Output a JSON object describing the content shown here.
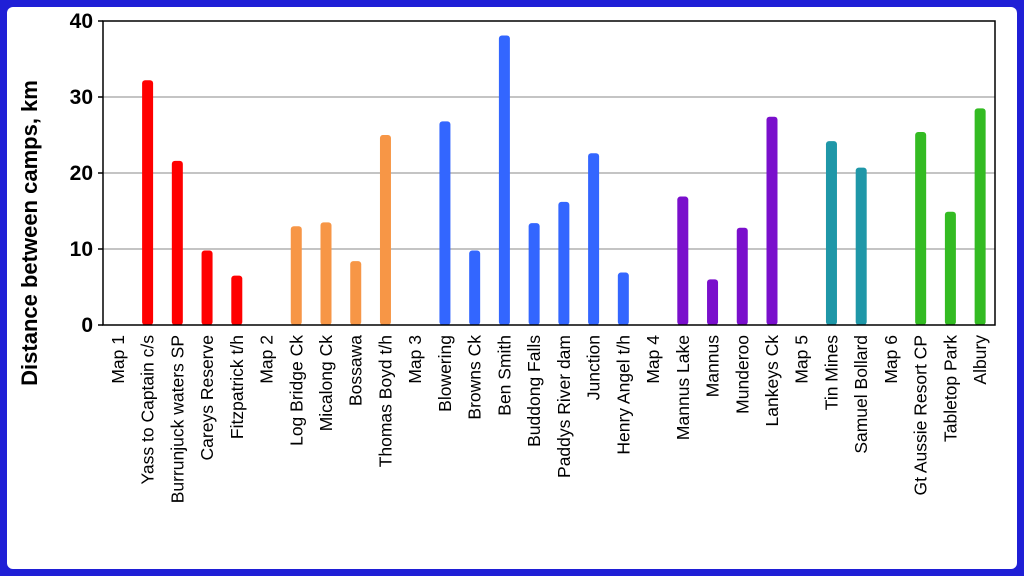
{
  "chart_data": {
    "type": "bar",
    "title": "",
    "xlabel": "",
    "ylabel": "Distance between camps, km",
    "ylim": [
      0,
      40
    ],
    "yticks": [
      0,
      10,
      20,
      30,
      40
    ],
    "grid": "horizontal",
    "categories": [
      "Map 1",
      "Yass to Captain c/s",
      "Burrunjuck waters SP",
      "Careys Reserve",
      "Fitzpatrick t/h",
      "Map 2",
      "Log Bridge Ck",
      "Micalong Ck",
      "Bossawa",
      "Thomas Boyd t/h",
      "Map 3",
      "Blowering",
      "Browns Ck",
      "Ben Smith",
      "Buddong Falls",
      "Paddys River dam",
      "Junction",
      "Henry Angel t/h",
      "Map 4",
      "Mannus Lake",
      "Mannus",
      "Munderoo",
      "Lankeys Ck",
      "Map 5",
      "Tin Mines",
      "Samuel Bollard",
      "Map 6",
      "Gt Aussie Resort CP",
      "Tabletop Park",
      "Albury"
    ],
    "values": [
      0,
      32.2,
      21.6,
      9.8,
      6.5,
      0,
      13.0,
      13.5,
      8.4,
      25.0,
      0,
      26.8,
      9.8,
      38.1,
      13.4,
      16.2,
      22.6,
      6.9,
      0,
      16.9,
      6.0,
      12.8,
      27.4,
      0,
      24.2,
      20.7,
      0,
      25.4,
      14.9,
      28.5
    ],
    "colors": [
      "#ff0000",
      "#ff0000",
      "#ff0000",
      "#ff0000",
      "#ff0000",
      "#f79646",
      "#f79646",
      "#f79646",
      "#f79646",
      "#f79646",
      "#3366ff",
      "#3366ff",
      "#3366ff",
      "#3366ff",
      "#3366ff",
      "#3366ff",
      "#3366ff",
      "#3366ff",
      "#7a0fcc",
      "#7a0fcc",
      "#7a0fcc",
      "#7a0fcc",
      "#7a0fcc",
      "#1f97a8",
      "#1f97a8",
      "#1f97a8",
      "#33bb22",
      "#33bb22",
      "#33bb22",
      "#33bb22"
    ]
  }
}
